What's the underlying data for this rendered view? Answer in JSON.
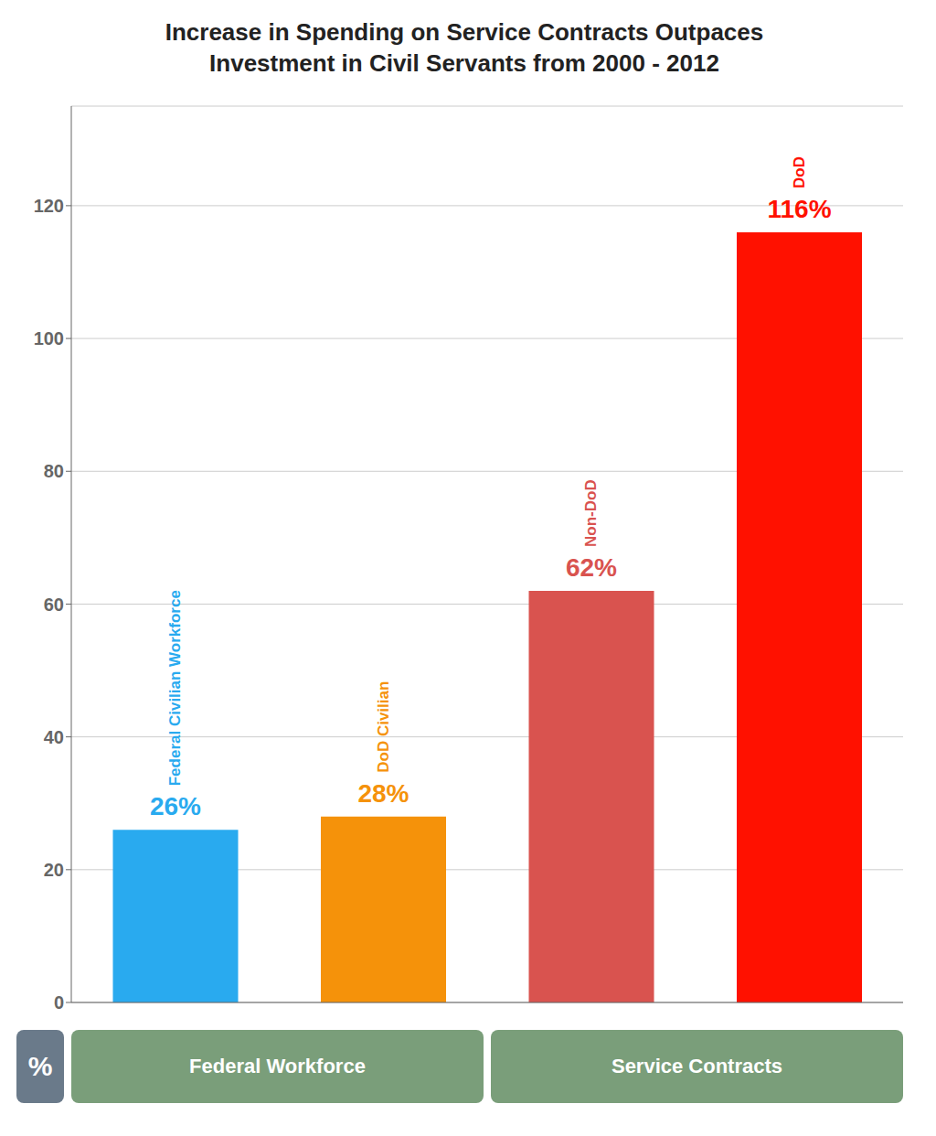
{
  "chart_data": {
    "type": "bar",
    "title": "Increase in Spending on Service Contracts Outpaces\nInvestment in Civil Servants from 2000 - 2012",
    "categories": [
      "Federal Civilian Workforce",
      "DoD Civilian",
      "Non-DoD",
      "DoD"
    ],
    "values": [
      26,
      28,
      62,
      116
    ],
    "value_labels": [
      "26%",
      "28%",
      "62%",
      "116%"
    ],
    "data_labels": true,
    "colors": [
      "#29aaef",
      "#f5920a",
      "#d9534f",
      "#ff1100"
    ],
    "ylim": [
      0,
      135
    ],
    "yticks": [
      0,
      20,
      40,
      60,
      80,
      100,
      120
    ],
    "grid": true,
    "tick_labels": "y",
    "annotations": [
      "%",
      "Federal Workforce",
      "Service Contracts"
    ]
  }
}
